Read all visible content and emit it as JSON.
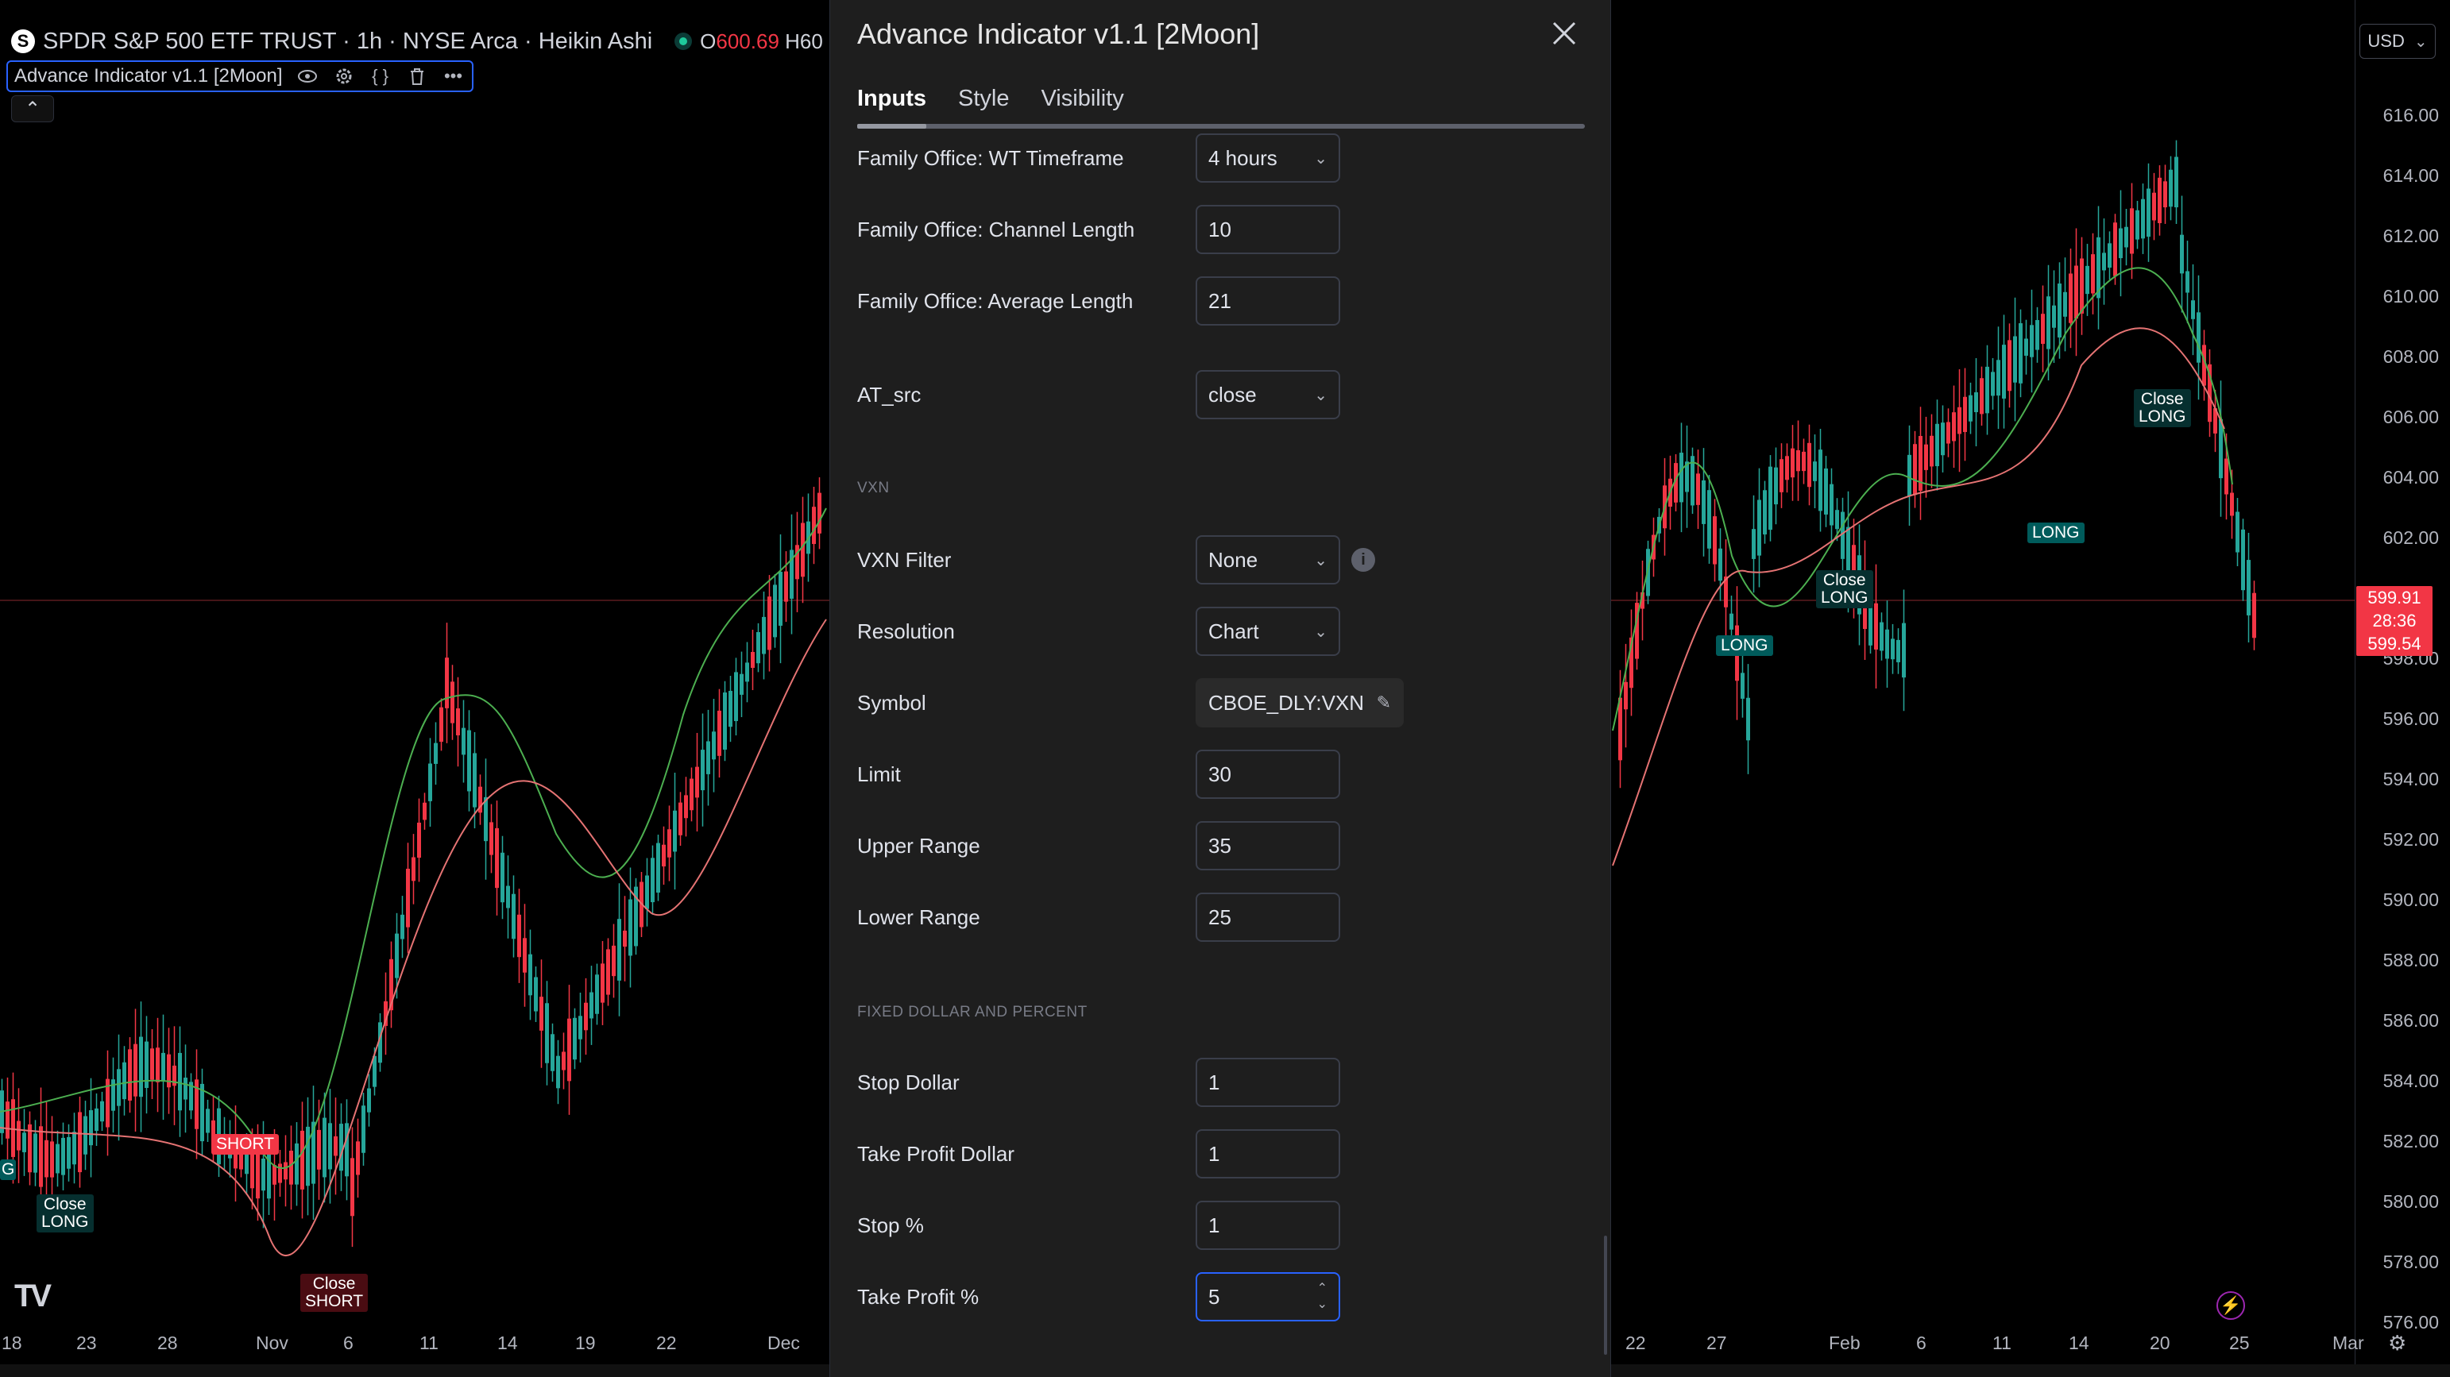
{
  "chart": {
    "symbol_logo": "S",
    "symbol_line": "SPDR S&P 500 ETF TRUST · 1h · NYSE Arca · Heikin Ashi",
    "ohlc_open_label": "O",
    "ohlc_open": "600.69",
    "ohlc_high_partial": "H60",
    "indicator_name": "Advance Indicator v1.1 [2Moon]",
    "currency": "USD",
    "price_ticks": [
      "616.00",
      "614.00",
      "612.00",
      "610.00",
      "608.00",
      "606.00",
      "604.00",
      "602.00",
      "598.00",
      "596.00",
      "594.00",
      "592.00",
      "590.00",
      "588.00",
      "586.00",
      "584.00",
      "582.00",
      "580.00",
      "578.00",
      "576.00"
    ],
    "current_price": "599.91",
    "countdown": "28:36",
    "bid_price": "599.54",
    "time_ticks_left": [
      "18",
      "23",
      "28",
      "Nov",
      "6",
      "11",
      "14",
      "19",
      "22",
      "Dec"
    ],
    "time_ticks_right": [
      "22",
      "27",
      "Feb",
      "6",
      "11",
      "14",
      "20",
      "25",
      "Mar"
    ],
    "labels": {
      "short": "SHORT",
      "long": "LONG",
      "close": "Close",
      "close_long": "LONG",
      "close_short": "SHORT",
      "partial_left": "G"
    },
    "colors": {
      "up": "#26a69a",
      "down": "#f23645",
      "accent": "#2962ff"
    }
  },
  "dialog": {
    "title": "Advance Indicator v1.1 [2Moon]",
    "tabs": [
      "Inputs",
      "Style",
      "Visibility"
    ],
    "fields": {
      "wt_timeframe": {
        "label": "Family Office: WT Timeframe",
        "value": "4 hours"
      },
      "channel_length": {
        "label": "Family Office: Channel Length",
        "value": "10"
      },
      "average_length": {
        "label": "Family Office: Average Length",
        "value": "21"
      },
      "at_src": {
        "label": "AT_src",
        "value": "close"
      },
      "vxn_section": "VXN",
      "vxn_filter": {
        "label": "VXN Filter",
        "value": "None"
      },
      "resolution": {
        "label": "Resolution",
        "value": "Chart"
      },
      "symbol": {
        "label": "Symbol",
        "value": "CBOE_DLY:VXN"
      },
      "limit": {
        "label": "Limit",
        "value": "30"
      },
      "upper_range": {
        "label": "Upper Range",
        "value": "35"
      },
      "lower_range": {
        "label": "Lower Range",
        "value": "25"
      },
      "fixed_section": "FIXED DOLLAR AND PERCENT",
      "stop_dollar": {
        "label": "Stop Dollar",
        "value": "1"
      },
      "take_profit_dollar": {
        "label": "Take Profit Dollar",
        "value": "1"
      },
      "stop_pct": {
        "label": "Stop %",
        "value": "1"
      },
      "take_profit_pct": {
        "label": "Take Profit %",
        "value": "5"
      }
    }
  }
}
